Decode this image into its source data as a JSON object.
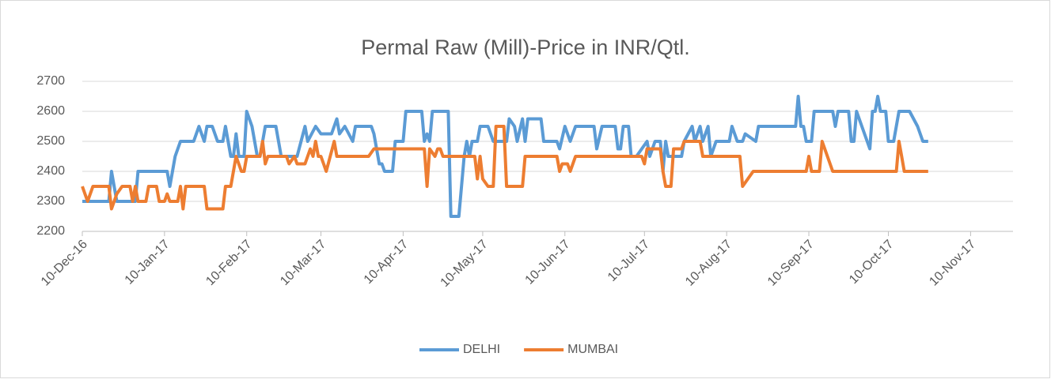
{
  "chart_data": {
    "type": "line",
    "title": "Permal Raw (Mill)-Price in INR/Qtl.",
    "xlim": [
      "2016-12-10",
      "2017-11-26"
    ],
    "xticks": [
      {
        "value": "2016-12-10",
        "label": "10-Dec-16"
      },
      {
        "value": "2017-01-10",
        "label": "10-Jan-17"
      },
      {
        "value": "2017-02-10",
        "label": "10-Feb-17"
      },
      {
        "value": "2017-03-10",
        "label": "10-Mar-17"
      },
      {
        "value": "2017-04-10",
        "label": "10-Apr-17"
      },
      {
        "value": "2017-05-10",
        "label": "10-May-17"
      },
      {
        "value": "2017-06-10",
        "label": "10-Jun-17"
      },
      {
        "value": "2017-07-10",
        "label": "10-Jul-17"
      },
      {
        "value": "2017-08-10",
        "label": "10-Aug-17"
      },
      {
        "value": "2017-09-10",
        "label": "10-Sep-17"
      },
      {
        "value": "2017-10-10",
        "label": "10-Oct-17"
      },
      {
        "value": "2017-11-10",
        "label": "10-Nov-17"
      }
    ],
    "ylim": [
      2200,
      2700
    ],
    "yticks": [
      2200,
      2300,
      2400,
      2500,
      2600,
      2700
    ],
    "grid": true,
    "legend": "bottom",
    "series": [
      {
        "name": "DELHI",
        "color": "#5b9bd5",
        "x": [
          "2016-12-10",
          "2016-12-20",
          "2016-12-21",
          "2016-12-23",
          "2016-12-30",
          "2016-12-31",
          "2017-01-11",
          "2017-01-12",
          "2017-01-14",
          "2017-01-16",
          "2017-01-21",
          "2017-01-23",
          "2017-01-25",
          "2017-01-26",
          "2017-01-28",
          "2017-01-30",
          "2017-02-01",
          "2017-02-02",
          "2017-02-04",
          "2017-02-05",
          "2017-02-06",
          "2017-02-07",
          "2017-02-09",
          "2017-02-10",
          "2017-02-12",
          "2017-02-14",
          "2017-02-15",
          "2017-02-17",
          "2017-02-21",
          "2017-02-23",
          "2017-03-01",
          "2017-03-04",
          "2017-03-05",
          "2017-03-08",
          "2017-03-10",
          "2017-03-14",
          "2017-03-16",
          "2017-03-17",
          "2017-03-19",
          "2017-03-22",
          "2017-03-23",
          "2017-03-29",
          "2017-03-30",
          "2017-04-01",
          "2017-04-02",
          "2017-04-03",
          "2017-04-06",
          "2017-04-07",
          "2017-04-10",
          "2017-04-11",
          "2017-04-17",
          "2017-04-18",
          "2017-04-19",
          "2017-04-20",
          "2017-04-21",
          "2017-04-27",
          "2017-04-28",
          "2017-05-01",
          "2017-05-03",
          "2017-05-04",
          "2017-05-05",
          "2017-05-06",
          "2017-05-08",
          "2017-05-09",
          "2017-05-12",
          "2017-05-14",
          "2017-05-19",
          "2017-05-20",
          "2017-05-22",
          "2017-05-23",
          "2017-05-25",
          "2017-05-26",
          "2017-05-27",
          "2017-06-01",
          "2017-06-02",
          "2017-06-07",
          "2017-06-08",
          "2017-06-10",
          "2017-06-12",
          "2017-06-14",
          "2017-06-21",
          "2017-06-22",
          "2017-06-24",
          "2017-06-29",
          "2017-06-30",
          "2017-07-01",
          "2017-07-02",
          "2017-07-04",
          "2017-07-05",
          "2017-07-07",
          "2017-07-11",
          "2017-07-12",
          "2017-07-14",
          "2017-07-16",
          "2017-07-17",
          "2017-07-18",
          "2017-07-19",
          "2017-07-24",
          "2017-07-25",
          "2017-07-28",
          "2017-07-29",
          "2017-07-31",
          "2017-08-01",
          "2017-08-03",
          "2017-08-04",
          "2017-08-06",
          "2017-08-11",
          "2017-08-12",
          "2017-08-14",
          "2017-08-16",
          "2017-08-17",
          "2017-08-21",
          "2017-08-22",
          "2017-09-05",
          "2017-09-06",
          "2017-09-07",
          "2017-09-08",
          "2017-09-09",
          "2017-09-11",
          "2017-09-12",
          "2017-09-19",
          "2017-09-20",
          "2017-09-21",
          "2017-09-25",
          "2017-09-26",
          "2017-09-27",
          "2017-09-28",
          "2017-09-30",
          "2017-10-03",
          "2017-10-04",
          "2017-10-05",
          "2017-10-06",
          "2017-10-07",
          "2017-10-09",
          "2017-10-10",
          "2017-10-12",
          "2017-10-14",
          "2017-10-18",
          "2017-10-21",
          "2017-10-23",
          "2017-10-25"
        ],
        "values": [
          2300,
          2300,
          2400,
          2300,
          2300,
          2400,
          2400,
          2350,
          2450,
          2500,
          2500,
          2550,
          2500,
          2550,
          2550,
          2500,
          2500,
          2550,
          2450,
          2450,
          2525,
          2450,
          2450,
          2600,
          2550,
          2450,
          2450,
          2550,
          2550,
          2450,
          2450,
          2550,
          2500,
          2550,
          2525,
          2525,
          2575,
          2525,
          2550,
          2500,
          2550,
          2550,
          2525,
          2425,
          2425,
          2400,
          2400,
          2500,
          2500,
          2600,
          2600,
          2500,
          2525,
          2500,
          2600,
          2600,
          2250,
          2250,
          2450,
          2500,
          2450,
          2500,
          2500,
          2550,
          2550,
          2500,
          2500,
          2575,
          2550,
          2500,
          2575,
          2500,
          2575,
          2575,
          2500,
          2500,
          2475,
          2550,
          2500,
          2550,
          2550,
          2475,
          2550,
          2550,
          2475,
          2475,
          2550,
          2550,
          2450,
          2450,
          2500,
          2450,
          2500,
          2500,
          2400,
          2500,
          2450,
          2450,
          2500,
          2550,
          2500,
          2550,
          2500,
          2550,
          2450,
          2500,
          2500,
          2550,
          2500,
          2500,
          2525,
          2500,
          2550,
          2550,
          2650,
          2550,
          2550,
          2500,
          2500,
          2600,
          2600,
          2550,
          2600,
          2600,
          2500,
          2500,
          2600,
          2550,
          2475,
          2600,
          2600,
          2650,
          2600,
          2600,
          2500,
          2500,
          2600,
          2600,
          2550,
          2500,
          2500
        ]
      },
      {
        "name": "MUMBAI",
        "color": "#ed7d31",
        "x": [
          "2016-12-10",
          "2016-12-12",
          "2016-12-14",
          "2016-12-20",
          "2016-12-21",
          "2016-12-23",
          "2016-12-25",
          "2016-12-28",
          "2016-12-29",
          "2016-12-30",
          "2016-12-31",
          "2017-01-03",
          "2017-01-04",
          "2017-01-07",
          "2017-01-08",
          "2017-01-10",
          "2017-01-11",
          "2017-01-12",
          "2017-01-15",
          "2017-01-16",
          "2017-01-17",
          "2017-01-18",
          "2017-01-25",
          "2017-01-26",
          "2017-02-01",
          "2017-02-02",
          "2017-02-04",
          "2017-02-06",
          "2017-02-07",
          "2017-02-08",
          "2017-02-09",
          "2017-02-10",
          "2017-02-15",
          "2017-02-16",
          "2017-02-17",
          "2017-02-18",
          "2017-02-25",
          "2017-02-26",
          "2017-02-28",
          "2017-03-01",
          "2017-03-04",
          "2017-03-06",
          "2017-03-07",
          "2017-03-08",
          "2017-03-09",
          "2017-03-10",
          "2017-03-11",
          "2017-03-12",
          "2017-03-15",
          "2017-03-16",
          "2017-03-28",
          "2017-03-30",
          "2017-04-18",
          "2017-04-19",
          "2017-04-20",
          "2017-04-22",
          "2017-04-23",
          "2017-04-24",
          "2017-04-25",
          "2017-05-07",
          "2017-05-08",
          "2017-05-09",
          "2017-05-10",
          "2017-05-12",
          "2017-05-14",
          "2017-05-15",
          "2017-05-18",
          "2017-05-19",
          "2017-05-25",
          "2017-05-26",
          "2017-06-07",
          "2017-06-08",
          "2017-06-09",
          "2017-06-11",
          "2017-06-12",
          "2017-06-14",
          "2017-07-09",
          "2017-07-10",
          "2017-07-11",
          "2017-07-16",
          "2017-07-17",
          "2017-07-18",
          "2017-07-20",
          "2017-07-21",
          "2017-07-24",
          "2017-07-25",
          "2017-07-31",
          "2017-08-01",
          "2017-08-15",
          "2017-08-16",
          "2017-08-20",
          "2017-09-09",
          "2017-09-10",
          "2017-09-11",
          "2017-09-14",
          "2017-09-15",
          "2017-09-17",
          "2017-09-19",
          "2017-10-13",
          "2017-10-14",
          "2017-10-15",
          "2017-10-16",
          "2017-10-25"
        ],
        "values": [
          2350,
          2300,
          2350,
          2350,
          2275,
          2325,
          2350,
          2350,
          2300,
          2350,
          2300,
          2300,
          2350,
          2350,
          2300,
          2300,
          2325,
          2300,
          2300,
          2350,
          2275,
          2350,
          2350,
          2275,
          2275,
          2350,
          2350,
          2450,
          2425,
          2400,
          2400,
          2450,
          2450,
          2500,
          2425,
          2450,
          2450,
          2425,
          2450,
          2425,
          2425,
          2475,
          2450,
          2500,
          2450,
          2450,
          2425,
          2400,
          2500,
          2450,
          2450,
          2475,
          2475,
          2350,
          2475,
          2450,
          2475,
          2475,
          2450,
          2450,
          2375,
          2450,
          2375,
          2350,
          2350,
          2550,
          2550,
          2350,
          2350,
          2450,
          2450,
          2400,
          2425,
          2425,
          2400,
          2450,
          2450,
          2425,
          2475,
          2475,
          2400,
          2350,
          2350,
          2475,
          2475,
          2500,
          2500,
          2450,
          2450,
          2350,
          2400,
          2400,
          2450,
          2400,
          2400,
          2500,
          2450,
          2400,
          2400,
          2500,
          2450,
          2400,
          2400
        ]
      }
    ]
  }
}
